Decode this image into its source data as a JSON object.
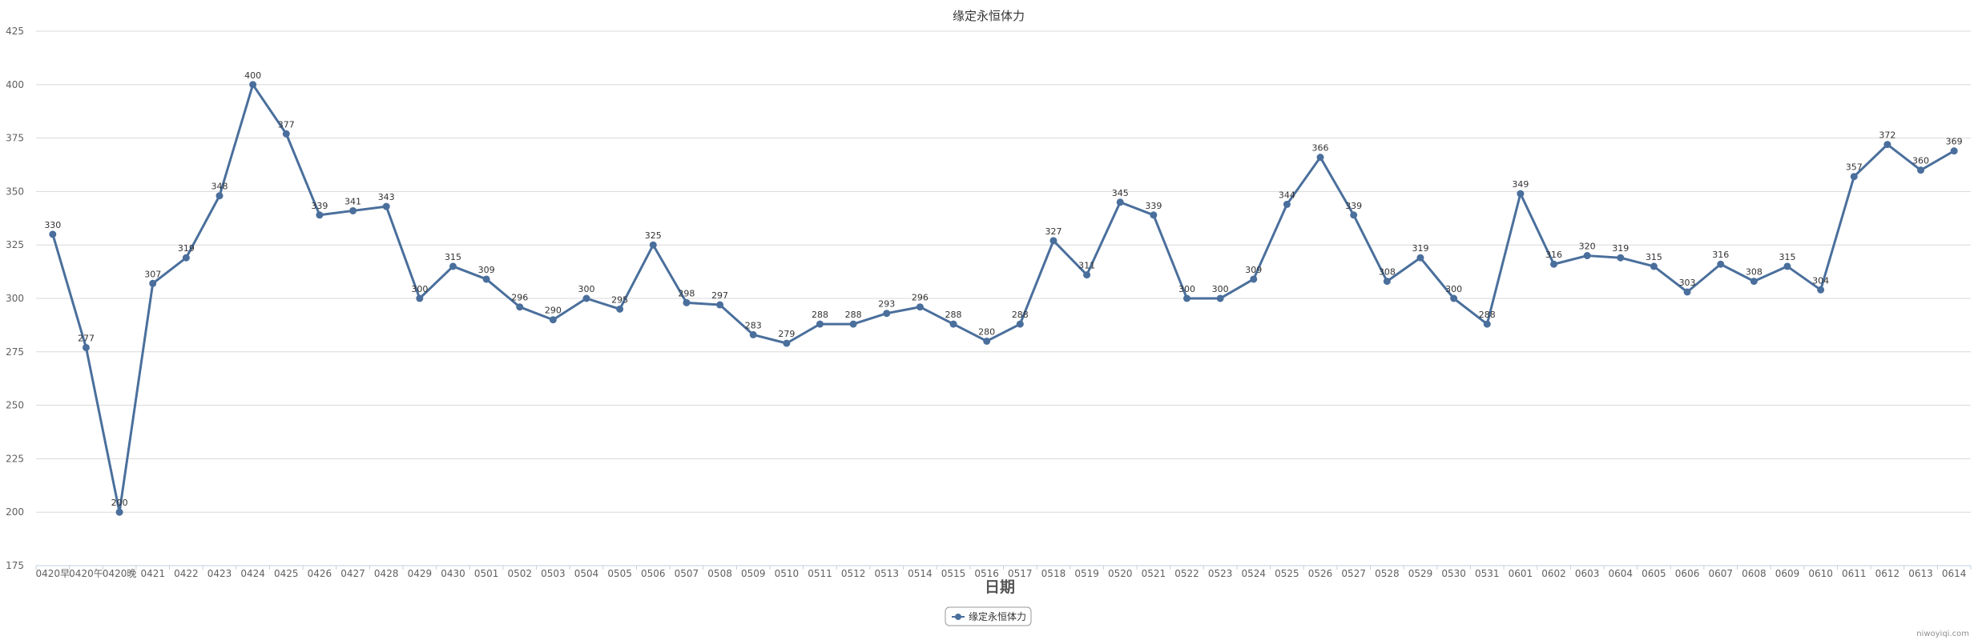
{
  "chart_data": {
    "type": "line",
    "title": "缘定永恒体力",
    "xlabel": "日期",
    "ylabel": "",
    "ylim": [
      175,
      425
    ],
    "yticks": [
      175,
      200,
      225,
      250,
      275,
      300,
      325,
      350,
      375,
      400,
      425
    ],
    "grid": true,
    "legend_position": "bottom-center",
    "categories": [
      "0420早",
      "0420午",
      "0420晚",
      "0421",
      "0422",
      "0423",
      "0424",
      "0425",
      "0426",
      "0427",
      "0428",
      "0429",
      "0430",
      "0501",
      "0502",
      "0503",
      "0504",
      "0505",
      "0506",
      "0507",
      "0508",
      "0509",
      "0510",
      "0511",
      "0512",
      "0513",
      "0514",
      "0515",
      "0516",
      "0517",
      "0518",
      "0519",
      "0520",
      "0521",
      "0522",
      "0523",
      "0524",
      "0525",
      "0526",
      "0527",
      "0528",
      "0529",
      "0530",
      "0531",
      "0601",
      "0602",
      "0603",
      "0604",
      "0605",
      "0606",
      "0607",
      "0608",
      "0609",
      "0610",
      "0611",
      "0612",
      "0613",
      "0614"
    ],
    "series": [
      {
        "name": "缘定永恒体力",
        "color": "#4a6f9c",
        "values": [
          330,
          277,
          200,
          307,
          319,
          348,
          400,
          377,
          339,
          341,
          343,
          300,
          315,
          309,
          296,
          290,
          300,
          295,
          325,
          298,
          297,
          283,
          279,
          288,
          288,
          293,
          296,
          288,
          280,
          288,
          327,
          311,
          345,
          339,
          300,
          300,
          309,
          344,
          366,
          339,
          308,
          319,
          300,
          288,
          349,
          316,
          320,
          319,
          315,
          303,
          316,
          308,
          315,
          304,
          357,
          372,
          360,
          369
        ]
      }
    ]
  },
  "credits": "niwoyiqi.com"
}
